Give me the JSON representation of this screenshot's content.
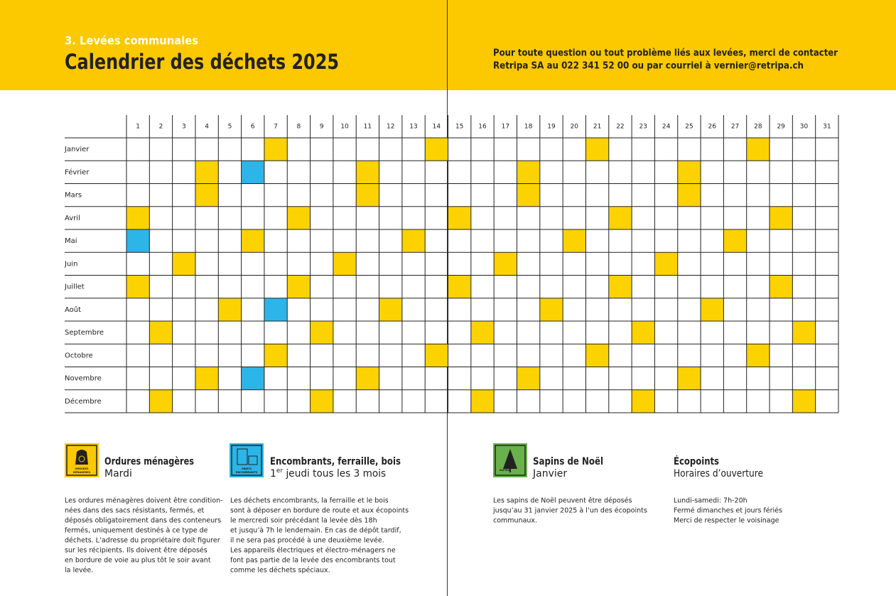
{
  "header": {
    "section": "3. Levées communales",
    "title": "Calendrier des déchets 2025",
    "contact": [
      "Pour toute question ou tout problème liés aux levées, merci de contacter",
      "Retripa SA au 022 341 52 00 ou par courriel à vernier@retripa.ch"
    ]
  },
  "calendar": {
    "days": [
      1,
      2,
      3,
      4,
      5,
      6,
      7,
      8,
      9,
      10,
      11,
      12,
      13,
      14,
      15,
      16,
      17,
      18,
      19,
      20,
      21,
      22,
      23,
      24,
      25,
      26,
      27,
      28,
      29,
      30,
      31
    ],
    "months": [
      {
        "name": "Janvier",
        "ordures": [
          7,
          14,
          21,
          28
        ],
        "encombrants": []
      },
      {
        "name": "Février",
        "ordures": [
          4,
          11,
          18,
          25
        ],
        "encombrants": [
          6
        ]
      },
      {
        "name": "Mars",
        "ordures": [
          4,
          11,
          18,
          25
        ],
        "encombrants": []
      },
      {
        "name": "Avril",
        "ordures": [
          1,
          8,
          15,
          22,
          29
        ],
        "encombrants": []
      },
      {
        "name": "Mai",
        "ordures": [
          6,
          13,
          20,
          27
        ],
        "encombrants": [
          1
        ]
      },
      {
        "name": "Juin",
        "ordures": [
          3,
          10,
          17,
          24
        ],
        "encombrants": []
      },
      {
        "name": "Juillet",
        "ordures": [
          1,
          8,
          15,
          22,
          29
        ],
        "encombrants": []
      },
      {
        "name": "Août",
        "ordures": [
          5,
          12,
          19,
          26
        ],
        "encombrants": [
          7
        ]
      },
      {
        "name": "Septembre",
        "ordures": [
          2,
          9,
          16,
          23,
          30
        ],
        "encombrants": []
      },
      {
        "name": "Octobre",
        "ordures": [
          7,
          14,
          21,
          28
        ],
        "encombrants": []
      },
      {
        "name": "Novembre",
        "ordures": [
          4,
          11,
          18,
          25
        ],
        "encombrants": [
          6
        ]
      },
      {
        "name": "Décembre",
        "ordures": [
          2,
          9,
          16,
          23,
          30
        ],
        "encombrants": []
      }
    ]
  },
  "legend": [
    {
      "icon": [
        "ORDURES",
        "MÉNAGÈRES"
      ],
      "title": "Ordures ménagères",
      "subtitle": [
        "Mardi"
      ],
      "lines": [
        "Les ordures ménagères doivent être condition-",
        "nées dans des sacs résistants, fermés, et",
        "déposés obligatoirement dans des conteneurs",
        "fermés, uniquement destinés à ce type de",
        "déchets. L’adresse du propriétaire doit figurer",
        "sur les récipients. Ils doivent être déposés",
        "en bordure de voie au plus tôt le soir avant",
        "la levée."
      ]
    },
    {
      "icon": [
        "OBJETS",
        "ENCOMBRANTS"
      ],
      "title": "Encombrants, ferraille, bois",
      "subtitle": [
        "1",
        "er",
        " jeudi tous les 3 mois"
      ],
      "lines": [
        "Les déchets encombrants, la ferraille et le bois",
        "sont à déposer en bordure de route et aux écopoints",
        "le mercredi soir précédant la levée dès 18h",
        "et jusqu’à 7h le lendemain. En cas de dépôt tardif,",
        "il ne sera pas procédé à une deuxième levée.",
        "Les appareils électriques et électro-ménagers ne",
        "font pas partie de la levée des encombrants tout",
        "comme les déchets spéciaux."
      ]
    },
    {
      "icon": [
        "SAPINS"
      ],
      "title": "Sapins de Noël",
      "subtitle": [
        "Janvier"
      ],
      "lines": [
        "Les sapins de Noël peuvent être déposés",
        "jusqu’au 31 janvier 2025 à l’un des écopoints",
        "communaux."
      ]
    },
    {
      "title": "Écopoints",
      "subtitle": [
        "Horaires d’ouverture"
      ],
      "lines": [
        "Lundi-samedi: 7h-20h",
        "Fermé dimanches et jours fériés",
        "Merci de respecter le voisinage"
      ]
    }
  ]
}
